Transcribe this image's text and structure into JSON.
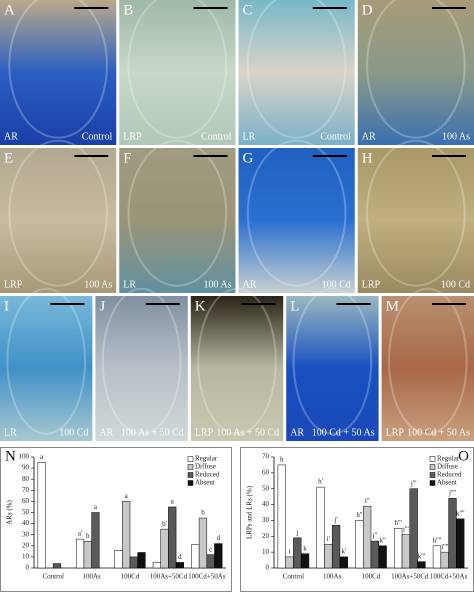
{
  "panels": [
    {
      "letter": "A",
      "tissue": "AR",
      "treatment": "Control"
    },
    {
      "letter": "B",
      "tissue": "LRP",
      "treatment": "Control"
    },
    {
      "letter": "C",
      "tissue": "LR",
      "treatment": "Control"
    },
    {
      "letter": "D",
      "tissue": "AR",
      "treatment": "100 As"
    },
    {
      "letter": "E",
      "tissue": "LRP",
      "treatment": "100 As"
    },
    {
      "letter": "F",
      "tissue": "LR",
      "treatment": "100 As"
    },
    {
      "letter": "G",
      "tissue": "AR",
      "treatment": "100 Cd"
    },
    {
      "letter": "H",
      "tissue": "LRP",
      "treatment": "100 Cd"
    },
    {
      "letter": "I",
      "tissue": "LR",
      "treatment": "100 Cd"
    },
    {
      "letter": "J",
      "tissue": "AR",
      "treatment": "100 As + 50 Cd"
    },
    {
      "letter": "K",
      "tissue": "LRP",
      "treatment": "100 As + 50 Cd"
    },
    {
      "letter": "L",
      "tissue": "AR",
      "treatment": "100 Cd + 50 As"
    },
    {
      "letter": "M",
      "tissue": "LRP",
      "treatment": "100 Cd + 50 As"
    }
  ],
  "chart_data": [
    {
      "type": "bar",
      "title": "N",
      "y_label": "ARs (%)",
      "categories": [
        "Control",
        "100As",
        "100Cd",
        "100As+50Cd",
        "100Cd+50As"
      ],
      "ylim": [
        0,
        100
      ],
      "yticks": [
        0,
        10,
        20,
        30,
        40,
        50,
        60,
        70,
        80,
        90,
        100
      ],
      "series": [
        {
          "name": "Regular",
          "color": "#ffffff",
          "values": [
            95,
            26,
            16,
            5,
            21
          ],
          "letters": [
            "a",
            "a'",
            null,
            null,
            null
          ]
        },
        {
          "name": "Diffuse",
          "color": "#c8c8c8",
          "values": [
            0,
            24,
            60,
            35,
            45
          ],
          "letters": [
            null,
            "b",
            "a",
            "b'",
            "b"
          ]
        },
        {
          "name": "Reduced",
          "color": "#5a5a5a",
          "values": [
            4,
            50,
            10,
            55,
            12
          ],
          "letters": [
            null,
            "a",
            null,
            "a",
            "c"
          ]
        },
        {
          "name": "Absent",
          "color": "#111111",
          "values": [
            0,
            0,
            14,
            5,
            22
          ],
          "letters": [
            null,
            null,
            null,
            "d",
            "d"
          ]
        }
      ]
    },
    {
      "type": "bar",
      "title": "O",
      "y_label": "LRPs and LRs (%)",
      "categories": [
        "Control",
        "100As",
        "100Cd",
        "100As+50Cd",
        "100Cd+50As"
      ],
      "ylim": [
        0,
        70
      ],
      "yticks": [
        0,
        10,
        20,
        30,
        40,
        50,
        60,
        70
      ],
      "series": [
        {
          "name": "Regular",
          "color": "#ffffff",
          "values": [
            65,
            51,
            30,
            25,
            14
          ],
          "letters": [
            "h",
            "h'",
            "h''",
            "h'''",
            "h''''"
          ]
        },
        {
          "name": "Diffuse",
          "color": "#c8c8c8",
          "values": [
            7,
            15,
            39,
            21,
            10
          ],
          "letters": [
            "i",
            "i'",
            "i''",
            "i'''",
            "i''''"
          ]
        },
        {
          "name": "Reduced",
          "color": "#5a5a5a",
          "values": [
            19,
            27,
            17,
            50,
            44
          ],
          "letters": [
            "j",
            "j'",
            "j''",
            "j'''",
            "j''''"
          ]
        },
        {
          "name": "Absent",
          "color": "#111111",
          "values": [
            9,
            7,
            14,
            4,
            31
          ],
          "letters": [
            "k",
            "k'",
            "k''",
            "k'''",
            "k''''"
          ]
        }
      ]
    }
  ]
}
